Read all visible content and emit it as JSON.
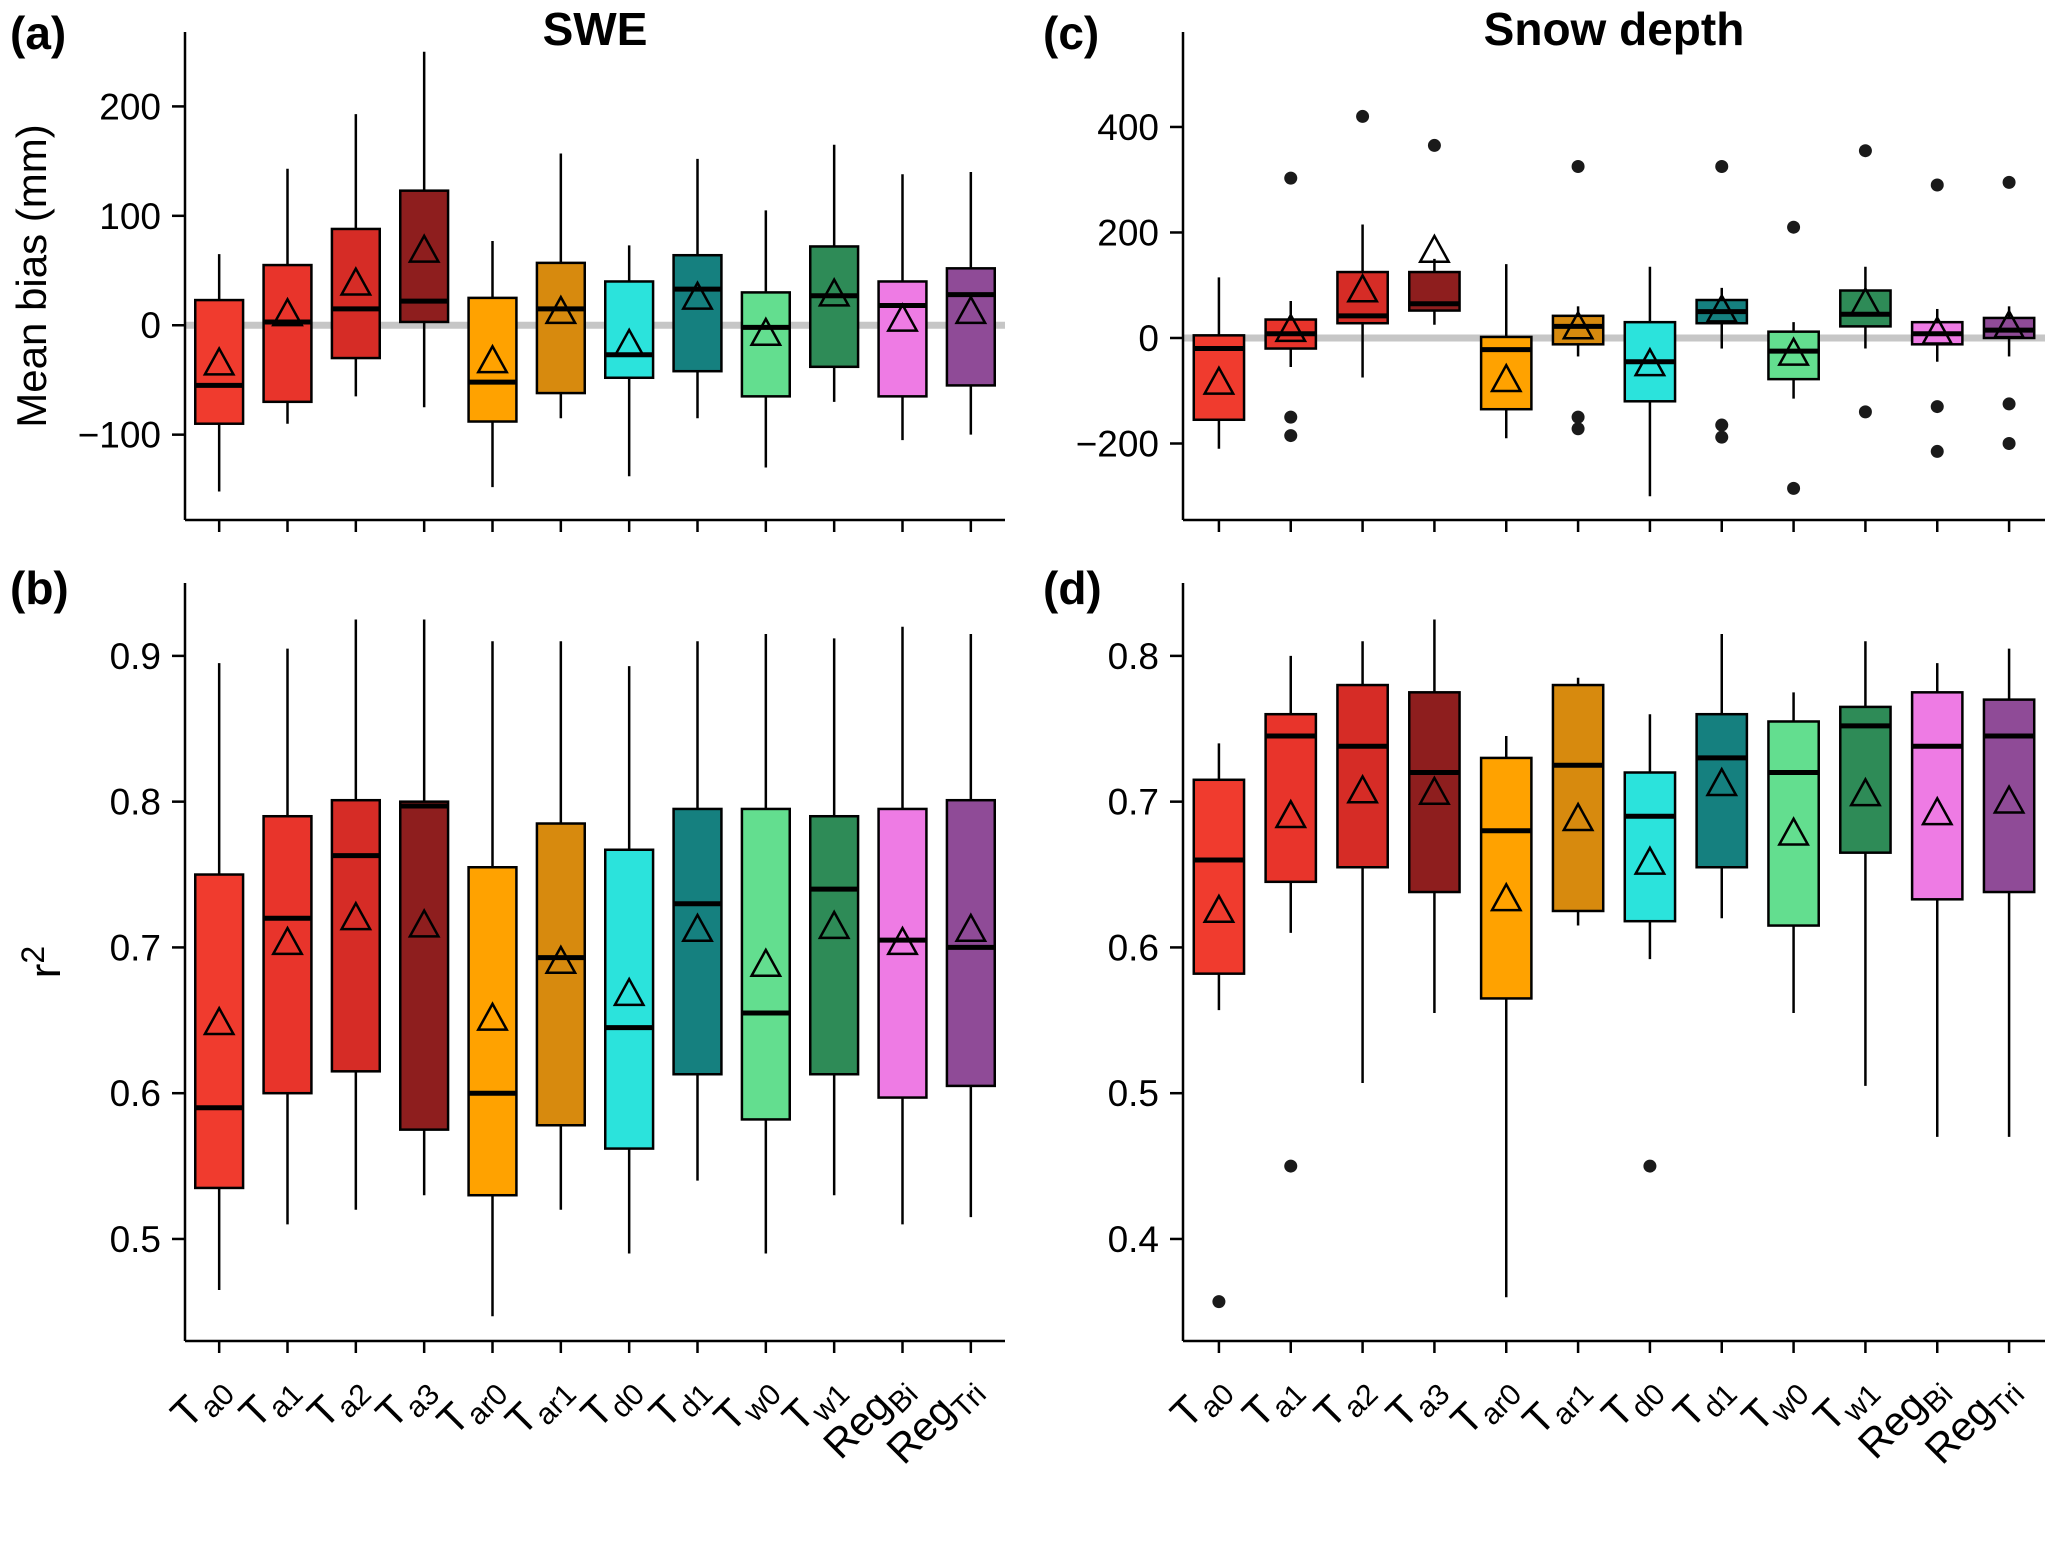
{
  "figure": {
    "title_left": "SWE",
    "title_right": "Snow depth",
    "panel_labels": {
      "a": "(a)",
      "b": "(b)",
      "c": "(c)",
      "d": "(d)"
    },
    "ylabel_bias": "Mean bias (mm)",
    "ylabel_r2_base": "r",
    "ylabel_r2_sup": "2",
    "zero_line_color": "#c6c6c6",
    "axis_color": "#000000"
  },
  "categories": [
    {
      "label": "Ta0",
      "base": "T",
      "sub": "a0",
      "color": "#F03B2E"
    },
    {
      "label": "Ta1",
      "base": "T",
      "sub": "a1",
      "color": "#E8342B"
    },
    {
      "label": "Ta2",
      "base": "T",
      "sub": "a2",
      "color": "#D62C26"
    },
    {
      "label": "Ta3",
      "base": "T",
      "sub": "a3",
      "color": "#8E1E1E"
    },
    {
      "label": "Tar0",
      "base": "T",
      "sub": "ar0",
      "color": "#FFA200"
    },
    {
      "label": "Tar1",
      "base": "T",
      "sub": "ar1",
      "color": "#D78A0E"
    },
    {
      "label": "Td0",
      "base": "T",
      "sub": "d0",
      "color": "#2BE3DC"
    },
    {
      "label": "Td1",
      "base": "T",
      "sub": "d1",
      "color": "#15807F"
    },
    {
      "label": "Tw0",
      "base": "T",
      "sub": "w0",
      "color": "#63DE8F"
    },
    {
      "label": "Tw1",
      "base": "T",
      "sub": "w1",
      "color": "#2E8B57"
    },
    {
      "label": "RegBi",
      "base": "Reg",
      "sub": "Bi",
      "color": "#EE7BE4"
    },
    {
      "label": "RegTri",
      "base": "Reg",
      "sub": "Tri",
      "color": "#8F4B97"
    }
  ],
  "chart_data": [
    {
      "type": "boxplot",
      "panel": "a",
      "title": "SWE",
      "ylabel": "Mean bias (mm)",
      "ylim": [
        -178,
        268
      ],
      "yticks": [
        {
          "v": -100,
          "label": "−100"
        },
        {
          "v": 0,
          "label": "0"
        },
        {
          "v": 100,
          "label": "100"
        },
        {
          "v": 200,
          "label": "200"
        }
      ],
      "zero_line": true,
      "show_xlabels": false,
      "categories": [
        "Ta0",
        "Ta1",
        "Ta2",
        "Ta3",
        "Tar0",
        "Tar1",
        "Td0",
        "Td1",
        "Tw0",
        "Tw1",
        "RegBi",
        "RegTri"
      ],
      "boxes": [
        {
          "whislo": -152,
          "q1": -90,
          "med": -55,
          "q3": 23,
          "whishi": 65,
          "mean": -35,
          "outliers": []
        },
        {
          "whislo": -90,
          "q1": -70,
          "med": 3,
          "q3": 55,
          "whishi": 143,
          "mean": 10,
          "outliers": []
        },
        {
          "whislo": -65,
          "q1": -30,
          "med": 15,
          "q3": 88,
          "whishi": 193,
          "mean": 38,
          "outliers": []
        },
        {
          "whislo": -75,
          "q1": 3,
          "med": 22,
          "q3": 123,
          "whishi": 250,
          "mean": 68,
          "outliers": []
        },
        {
          "whislo": -148,
          "q1": -88,
          "med": -52,
          "q3": 25,
          "whishi": 77,
          "mean": -33,
          "outliers": []
        },
        {
          "whislo": -85,
          "q1": -62,
          "med": 15,
          "q3": 57,
          "whishi": 157,
          "mean": 12,
          "outliers": []
        },
        {
          "whislo": -138,
          "q1": -48,
          "med": -27,
          "q3": 40,
          "whishi": 73,
          "mean": -18,
          "outliers": []
        },
        {
          "whislo": -85,
          "q1": -42,
          "med": 33,
          "q3": 64,
          "whishi": 152,
          "mean": 25,
          "outliers": []
        },
        {
          "whislo": -130,
          "q1": -65,
          "med": -2,
          "q3": 30,
          "whishi": 105,
          "mean": -8,
          "outliers": []
        },
        {
          "whislo": -70,
          "q1": -38,
          "med": 27,
          "q3": 72,
          "whishi": 165,
          "mean": 28,
          "outliers": []
        },
        {
          "whislo": -105,
          "q1": -65,
          "med": 18,
          "q3": 40,
          "whishi": 138,
          "mean": 5,
          "outliers": []
        },
        {
          "whislo": -100,
          "q1": -55,
          "med": 28,
          "q3": 52,
          "whishi": 140,
          "mean": 12,
          "outliers": []
        }
      ]
    },
    {
      "type": "boxplot",
      "panel": "c",
      "title": "Snow depth",
      "ylabel": "",
      "ylim": [
        -345,
        580
      ],
      "yticks": [
        {
          "v": -200,
          "label": "−200"
        },
        {
          "v": 0,
          "label": "0"
        },
        {
          "v": 200,
          "label": "200"
        },
        {
          "v": 400,
          "label": "400"
        }
      ],
      "zero_line": true,
      "show_xlabels": false,
      "categories": [
        "Ta0",
        "Ta1",
        "Ta2",
        "Ta3",
        "Tar0",
        "Tar1",
        "Td0",
        "Td1",
        "Tw0",
        "Tw1",
        "RegBi",
        "RegTri"
      ],
      "boxes": [
        {
          "whislo": -210,
          "q1": -155,
          "med": -20,
          "q3": 5,
          "whishi": 115,
          "mean": -85,
          "outliers": []
        },
        {
          "whislo": -55,
          "q1": -20,
          "med": 8,
          "q3": 35,
          "whishi": 70,
          "mean": 15,
          "outliers": [
            303,
            -150,
            -185
          ]
        },
        {
          "whislo": -75,
          "q1": 28,
          "med": 42,
          "q3": 125,
          "whishi": 215,
          "mean": 90,
          "outliers": [
            420
          ]
        },
        {
          "whislo": 25,
          "q1": 52,
          "med": 65,
          "q3": 125,
          "whishi": 150,
          "mean": 165,
          "outliers": [
            365
          ]
        },
        {
          "whislo": -190,
          "q1": -135,
          "med": -22,
          "q3": 2,
          "whishi": 140,
          "mean": -80,
          "outliers": []
        },
        {
          "whislo": -35,
          "q1": -12,
          "med": 22,
          "q3": 42,
          "whishi": 60,
          "mean": 20,
          "outliers": [
            325,
            -150,
            -172
          ]
        },
        {
          "whislo": -300,
          "q1": -120,
          "med": -45,
          "q3": 30,
          "whishi": 135,
          "mean": -50,
          "outliers": []
        },
        {
          "whislo": -20,
          "q1": 28,
          "med": 50,
          "q3": 72,
          "whishi": 95,
          "mean": 52,
          "outliers": [
            325,
            -165,
            -188
          ]
        },
        {
          "whislo": -115,
          "q1": -78,
          "med": -25,
          "q3": 12,
          "whishi": 30,
          "mean": -30,
          "outliers": [
            210,
            -285
          ]
        },
        {
          "whislo": -20,
          "q1": 22,
          "med": 45,
          "q3": 90,
          "whishi": 135,
          "mean": 65,
          "outliers": [
            355,
            -140
          ]
        },
        {
          "whislo": -45,
          "q1": -12,
          "med": 8,
          "q3": 30,
          "whishi": 55,
          "mean": 10,
          "outliers": [
            290,
            -130,
            -215
          ]
        },
        {
          "whislo": -35,
          "q1": 0,
          "med": 15,
          "q3": 38,
          "whishi": 60,
          "mean": 22,
          "outliers": [
            295,
            -125,
            -200
          ]
        }
      ]
    },
    {
      "type": "boxplot",
      "panel": "b",
      "title": "",
      "ylabel": "r2",
      "ylim": [
        0.43,
        0.95
      ],
      "yticks": [
        {
          "v": 0.5,
          "label": "0.5"
        },
        {
          "v": 0.6,
          "label": "0.6"
        },
        {
          "v": 0.7,
          "label": "0.7"
        },
        {
          "v": 0.8,
          "label": "0.8"
        },
        {
          "v": 0.9,
          "label": "0.9"
        }
      ],
      "zero_line": false,
      "show_xlabels": true,
      "categories": [
        "Ta0",
        "Ta1",
        "Ta2",
        "Ta3",
        "Tar0",
        "Tar1",
        "Td0",
        "Td1",
        "Tw0",
        "Tw1",
        "RegBi",
        "RegTri"
      ],
      "boxes": [
        {
          "whislo": 0.465,
          "q1": 0.535,
          "med": 0.59,
          "q3": 0.75,
          "whishi": 0.895,
          "mean": 0.648,
          "outliers": []
        },
        {
          "whislo": 0.51,
          "q1": 0.6,
          "med": 0.72,
          "q3": 0.79,
          "whishi": 0.905,
          "mean": 0.703,
          "outliers": []
        },
        {
          "whislo": 0.52,
          "q1": 0.615,
          "med": 0.763,
          "q3": 0.801,
          "whishi": 0.925,
          "mean": 0.72,
          "outliers": []
        },
        {
          "whislo": 0.53,
          "q1": 0.575,
          "med": 0.797,
          "q3": 0.8,
          "whishi": 0.925,
          "mean": 0.715,
          "outliers": []
        },
        {
          "whislo": 0.447,
          "q1": 0.53,
          "med": 0.6,
          "q3": 0.755,
          "whishi": 0.91,
          "mean": 0.651,
          "outliers": []
        },
        {
          "whislo": 0.52,
          "q1": 0.578,
          "med": 0.693,
          "q3": 0.785,
          "whishi": 0.91,
          "mean": 0.69,
          "outliers": []
        },
        {
          "whislo": 0.49,
          "q1": 0.562,
          "med": 0.645,
          "q3": 0.767,
          "whishi": 0.893,
          "mean": 0.668,
          "outliers": []
        },
        {
          "whislo": 0.54,
          "q1": 0.613,
          "med": 0.73,
          "q3": 0.795,
          "whishi": 0.91,
          "mean": 0.712,
          "outliers": []
        },
        {
          "whislo": 0.49,
          "q1": 0.582,
          "med": 0.655,
          "q3": 0.795,
          "whishi": 0.915,
          "mean": 0.688,
          "outliers": []
        },
        {
          "whislo": 0.53,
          "q1": 0.613,
          "med": 0.74,
          "q3": 0.79,
          "whishi": 0.912,
          "mean": 0.714,
          "outliers": []
        },
        {
          "whislo": 0.51,
          "q1": 0.597,
          "med": 0.705,
          "q3": 0.795,
          "whishi": 0.92,
          "mean": 0.703,
          "outliers": []
        },
        {
          "whislo": 0.515,
          "q1": 0.605,
          "med": 0.7,
          "q3": 0.801,
          "whishi": 0.915,
          "mean": 0.712,
          "outliers": []
        }
      ]
    },
    {
      "type": "boxplot",
      "panel": "d",
      "title": "",
      "ylabel": "",
      "ylim": [
        0.33,
        0.85
      ],
      "yticks": [
        {
          "v": 0.4,
          "label": "0.4"
        },
        {
          "v": 0.5,
          "label": "0.5"
        },
        {
          "v": 0.6,
          "label": "0.6"
        },
        {
          "v": 0.7,
          "label": "0.7"
        },
        {
          "v": 0.8,
          "label": "0.8"
        }
      ],
      "zero_line": false,
      "show_xlabels": true,
      "categories": [
        "Ta0",
        "Ta1",
        "Ta2",
        "Ta3",
        "Tar0",
        "Tar1",
        "Td0",
        "Td1",
        "Tw0",
        "Tw1",
        "RegBi",
        "RegTri"
      ],
      "boxes": [
        {
          "whislo": 0.557,
          "q1": 0.582,
          "med": 0.66,
          "q3": 0.715,
          "whishi": 0.74,
          "mean": 0.625,
          "outliers": [
            0.357
          ]
        },
        {
          "whislo": 0.61,
          "q1": 0.645,
          "med": 0.745,
          "q3": 0.76,
          "whishi": 0.8,
          "mean": 0.69,
          "outliers": [
            0.45
          ]
        },
        {
          "whislo": 0.507,
          "q1": 0.655,
          "med": 0.738,
          "q3": 0.78,
          "whishi": 0.81,
          "mean": 0.707,
          "outliers": []
        },
        {
          "whislo": 0.555,
          "q1": 0.638,
          "med": 0.72,
          "q3": 0.775,
          "whishi": 0.825,
          "mean": 0.706,
          "outliers": []
        },
        {
          "whislo": 0.36,
          "q1": 0.565,
          "med": 0.68,
          "q3": 0.73,
          "whishi": 0.745,
          "mean": 0.633,
          "outliers": []
        },
        {
          "whislo": 0.615,
          "q1": 0.625,
          "med": 0.725,
          "q3": 0.78,
          "whishi": 0.785,
          "mean": 0.688,
          "outliers": []
        },
        {
          "whislo": 0.592,
          "q1": 0.618,
          "med": 0.69,
          "q3": 0.72,
          "whishi": 0.76,
          "mean": 0.658,
          "outliers": [
            0.45
          ]
        },
        {
          "whislo": 0.62,
          "q1": 0.655,
          "med": 0.73,
          "q3": 0.76,
          "whishi": 0.815,
          "mean": 0.712,
          "outliers": []
        },
        {
          "whislo": 0.555,
          "q1": 0.615,
          "med": 0.72,
          "q3": 0.755,
          "whishi": 0.775,
          "mean": 0.678,
          "outliers": []
        },
        {
          "whislo": 0.505,
          "q1": 0.665,
          "med": 0.752,
          "q3": 0.765,
          "whishi": 0.81,
          "mean": 0.705,
          "outliers": []
        },
        {
          "whislo": 0.47,
          "q1": 0.633,
          "med": 0.738,
          "q3": 0.775,
          "whishi": 0.795,
          "mean": 0.692,
          "outliers": []
        },
        {
          "whislo": 0.47,
          "q1": 0.638,
          "med": 0.745,
          "q3": 0.77,
          "whishi": 0.805,
          "mean": 0.7,
          "outliers": []
        }
      ]
    }
  ]
}
